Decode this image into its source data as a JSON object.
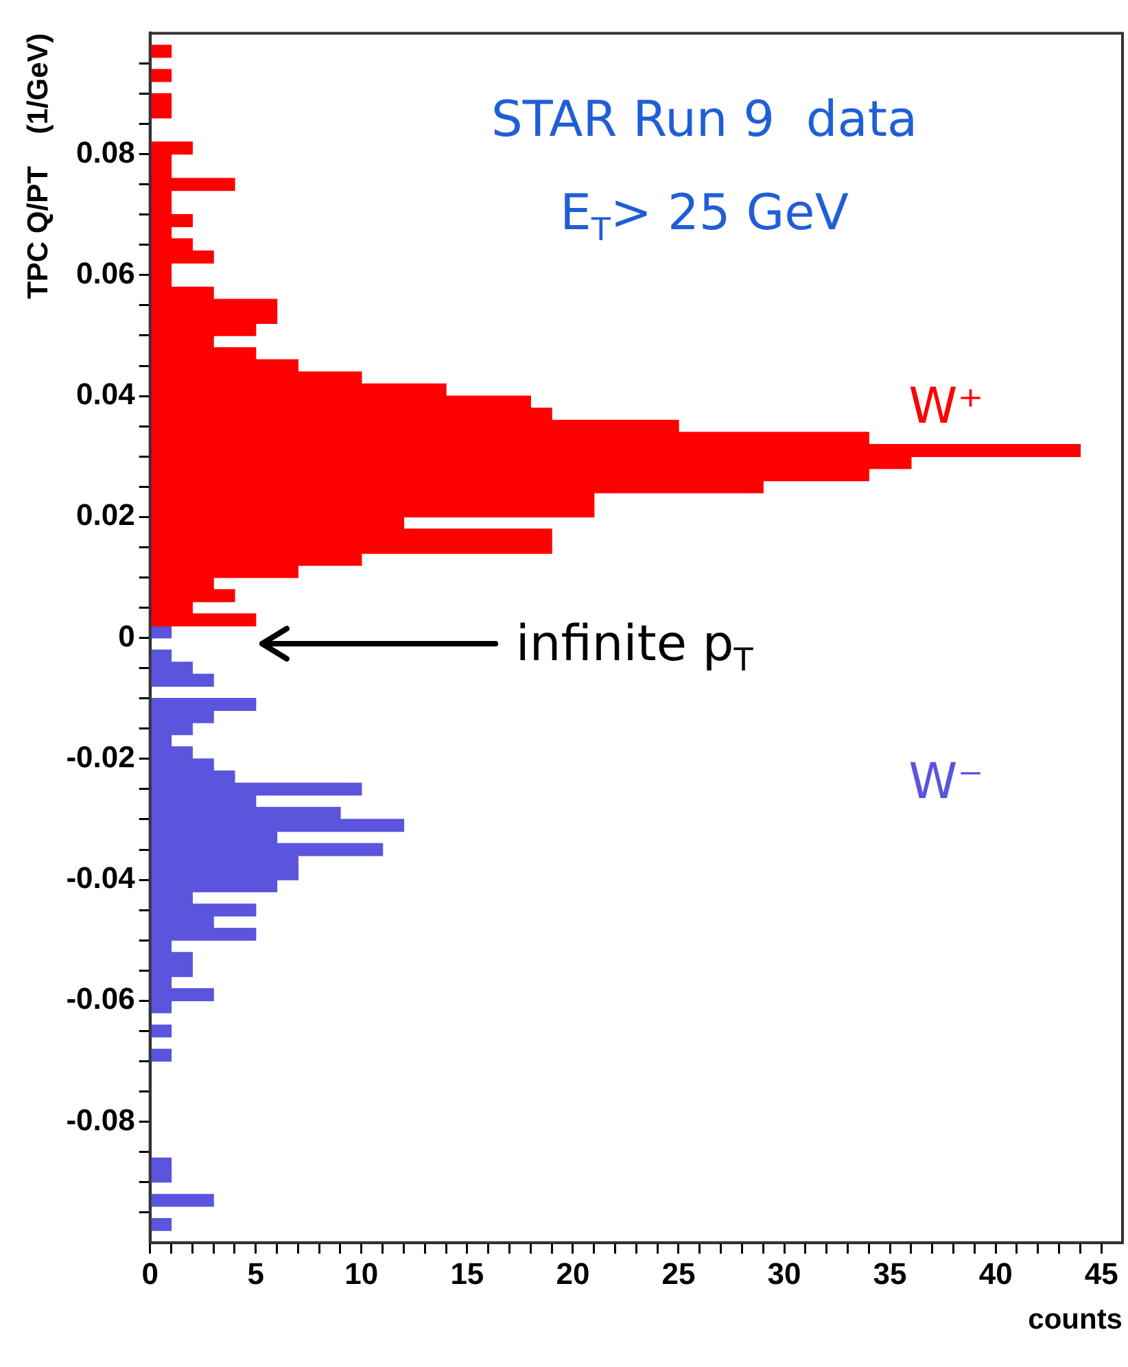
{
  "chart_data": {
    "type": "histogram",
    "orientation": "horizontal",
    "title": "STAR Run 9  data",
    "subtitle": "E$_{T}$> 25 GeV",
    "xlabel": "counts",
    "ylabel": "TPC Q/PT    (1/GeV)",
    "annotations": [
      "infinite p$_{T}$"
    ],
    "xlim": [
      0,
      46
    ],
    "ylim": [
      -0.1,
      0.1
    ],
    "xticks": [
      0,
      {
        "value": 1,
        "label": null
      },
      {
        "value": 2,
        "label": null
      },
      {
        "value": 3,
        "label": null
      },
      {
        "value": 4,
        "label": null
      },
      5,
      {
        "value": 6,
        "label": null
      },
      {
        "value": 7,
        "label": null
      },
      {
        "value": 8,
        "label": null
      },
      {
        "value": 9,
        "label": null
      },
      10,
      {
        "value": 11,
        "label": null
      },
      {
        "value": 12,
        "label": null
      },
      {
        "value": 13,
        "label": null
      },
      {
        "value": 14,
        "label": null
      },
      15,
      {
        "value": 16,
        "label": null
      },
      {
        "value": 17,
        "label": null
      },
      {
        "value": 18,
        "label": null
      },
      {
        "value": 19,
        "label": null
      },
      20,
      {
        "value": 21,
        "label": null
      },
      {
        "value": 22,
        "label": null
      },
      {
        "value": 23,
        "label": null
      },
      {
        "value": 24,
        "label": null
      },
      25,
      {
        "value": 26,
        "label": null
      },
      {
        "value": 27,
        "label": null
      },
      {
        "value": 28,
        "label": null
      },
      {
        "value": 29,
        "label": null
      },
      30,
      {
        "value": 31,
        "label": null
      },
      {
        "value": 32,
        "label": null
      },
      {
        "value": 33,
        "label": null
      },
      {
        "value": 34,
        "label": null
      },
      35,
      {
        "value": 36,
        "label": null
      },
      {
        "value": 37,
        "label": null
      },
      {
        "value": 38,
        "label": null
      },
      {
        "value": 39,
        "label": null
      },
      40,
      {
        "value": 41,
        "label": null
      },
      {
        "value": 42,
        "label": null
      },
      {
        "value": 43,
        "label": null
      },
      {
        "value": 44,
        "label": null
      },
      45
    ],
    "yticks": [
      {
        "value": -0.095,
        "label": null
      },
      {
        "value": -0.09,
        "label": null
      },
      {
        "value": -0.085,
        "label": null
      },
      -0.08,
      {
        "value": -0.075,
        "label": null
      },
      {
        "value": -0.07,
        "label": null
      },
      {
        "value": -0.065,
        "label": null
      },
      -0.06,
      {
        "value": -0.055,
        "label": null
      },
      {
        "value": -0.05,
        "label": null
      },
      {
        "value": -0.045,
        "label": null
      },
      -0.04,
      {
        "value": -0.035,
        "label": null
      },
      {
        "value": -0.03,
        "label": null
      },
      {
        "value": -0.025,
        "label": null
      },
      -0.02,
      {
        "value": -0.015,
        "label": null
      },
      {
        "value": -0.01,
        "label": null
      },
      {
        "value": -0.005,
        "label": null
      },
      0,
      {
        "value": 0.005,
        "label": null
      },
      {
        "value": 0.01,
        "label": null
      },
      {
        "value": 0.015,
        "label": null
      },
      0.02,
      {
        "value": 0.025,
        "label": null
      },
      {
        "value": 0.03,
        "label": null
      },
      {
        "value": 0.035,
        "label": null
      },
      0.04,
      {
        "value": 0.045,
        "label": null
      },
      {
        "value": 0.05,
        "label": null
      },
      {
        "value": 0.055,
        "label": null
      },
      0.06,
      {
        "value": 0.065,
        "label": null
      },
      {
        "value": 0.07,
        "label": null
      },
      {
        "value": 0.075,
        "label": null
      },
      0.08,
      {
        "value": 0.085,
        "label": null
      },
      {
        "value": 0.09,
        "label": null
      },
      {
        "value": 0.095,
        "label": null
      }
    ],
    "bins": [
      -0.1,
      -0.098,
      -0.096,
      -0.094,
      -0.092,
      -0.09,
      -0.088,
      -0.086,
      -0.084,
      -0.082,
      -0.08,
      -0.078,
      -0.076,
      -0.074,
      -0.072,
      -0.07,
      -0.068,
      -0.066,
      -0.064,
      -0.062,
      -0.06,
      -0.058,
      -0.056,
      -0.054,
      -0.052,
      -0.05,
      -0.048,
      -0.046,
      -0.044,
      -0.042,
      -0.04,
      -0.038,
      -0.036,
      -0.034,
      -0.032,
      -0.03,
      -0.028,
      -0.026,
      -0.024,
      -0.022,
      -0.02,
      -0.018,
      -0.016,
      -0.014,
      -0.012,
      -0.01,
      -0.008,
      -0.006,
      -0.004,
      -0.002,
      0,
      0.002,
      0.004,
      0.006,
      0.008,
      0.01,
      0.012,
      0.014,
      0.016,
      0.018,
      0.02,
      0.022,
      0.024,
      0.026,
      0.028,
      0.03,
      0.032,
      0.034,
      0.036,
      0.038,
      0.04,
      0.042,
      0.044,
      0.046,
      0.048,
      0.05,
      0.052,
      0.054,
      0.056,
      0.058,
      0.06,
      0.062,
      0.064,
      0.066,
      0.068,
      0.07,
      0.072,
      0.074,
      0.076,
      0.078,
      0.08,
      0.082,
      0.084,
      0.086,
      0.088,
      0.09,
      0.092,
      0.094,
      0.096,
      0.098,
      0.1
    ],
    "series": [
      {
        "name": "W⁺",
        "color": "#ff0000",
        "values": [
          null,
          null,
          null,
          null,
          null,
          null,
          null,
          null,
          null,
          null,
          null,
          null,
          null,
          null,
          null,
          null,
          null,
          null,
          null,
          null,
          null,
          null,
          null,
          null,
          null,
          null,
          null,
          null,
          null,
          null,
          null,
          null,
          null,
          null,
          null,
          null,
          null,
          null,
          null,
          null,
          null,
          null,
          null,
          null,
          null,
          null,
          null,
          null,
          null,
          null,
          null,
          5,
          2,
          4,
          3,
          7,
          10,
          19,
          19,
          12,
          21,
          21,
          29,
          34,
          36,
          44,
          34,
          25,
          19,
          18,
          14,
          10,
          7,
          5,
          3,
          5,
          6,
          6,
          3,
          1,
          1,
          3,
          2,
          1,
          2,
          1,
          1,
          4,
          1,
          1,
          2,
          0,
          0,
          1,
          1,
          0,
          1,
          0,
          1,
          0
        ]
      },
      {
        "name": "W⁻",
        "color": "#5a55dc",
        "values": [
          0,
          1,
          0,
          3,
          0,
          1,
          1,
          0,
          0,
          0,
          0,
          0,
          0,
          0,
          0,
          1,
          0,
          1,
          0,
          1,
          3,
          1,
          2,
          2,
          1,
          5,
          3,
          5,
          2,
          6,
          7,
          7,
          11,
          6,
          12,
          9,
          5,
          10,
          4,
          3,
          2,
          1,
          2,
          3,
          5,
          0,
          3,
          2,
          1,
          0,
          1,
          null,
          null,
          null,
          null,
          null,
          null,
          null,
          null,
          null,
          null,
          null,
          null,
          null,
          null,
          null,
          null,
          null,
          null,
          null,
          null,
          null,
          null,
          null,
          null,
          null,
          null,
          null,
          null,
          null,
          null,
          null,
          null,
          null,
          null,
          null,
          null,
          null,
          null,
          null,
          null,
          null,
          null,
          null,
          null,
          null,
          null,
          null,
          null,
          null
        ]
      }
    ]
  }
}
